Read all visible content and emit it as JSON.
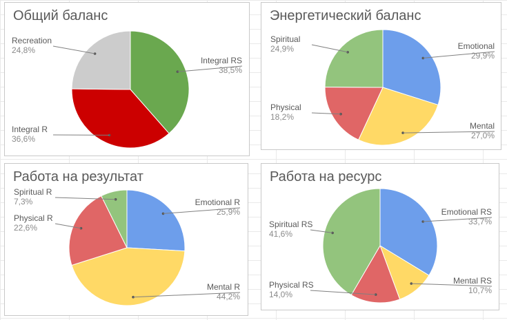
{
  "chart_data": [
    {
      "type": "pie",
      "title": "Общий баланс",
      "series": [
        {
          "values": [
            38.5,
            36.6,
            24.8
          ]
        }
      ],
      "categories": [
        "Integral RS",
        "Integral R",
        "Recreation"
      ],
      "value_labels": [
        "38,5%",
        "36,6%",
        "24,8%"
      ],
      "colors": [
        "#6aa84f",
        "#cc0000",
        "#cccccc"
      ],
      "legend": "none"
    },
    {
      "type": "pie",
      "title": "Энергетический баланс",
      "series": [
        {
          "values": [
            29.9,
            27.0,
            18.2,
            24.9
          ]
        }
      ],
      "categories": [
        "Emotional",
        "Mental",
        "Physical",
        "Spiritual"
      ],
      "value_labels": [
        "29,9%",
        "27,0%",
        "18,2%",
        "24,9%"
      ],
      "colors": [
        "#6d9eeb",
        "#ffd966",
        "#e06666",
        "#93c47d"
      ],
      "legend": "none"
    },
    {
      "type": "pie",
      "title": "Работа на результат",
      "series": [
        {
          "values": [
            25.9,
            44.2,
            22.6,
            7.3
          ]
        }
      ],
      "categories": [
        "Emotional R",
        "Mental R",
        "Physical R",
        "Spiritual R"
      ],
      "value_labels": [
        "25,9%",
        "44,2%",
        "22,6%",
        "7,3%"
      ],
      "colors": [
        "#6d9eeb",
        "#ffd966",
        "#e06666",
        "#93c47d"
      ],
      "legend": "none"
    },
    {
      "type": "pie",
      "title": "Работа на ресурс",
      "series": [
        {
          "values": [
            33.7,
            10.7,
            14.0,
            41.6
          ]
        }
      ],
      "categories": [
        "Emotional RS",
        "Mental RS",
        "Physical RS",
        "Spiritual RS"
      ],
      "value_labels": [
        "33,7%",
        "10,7%",
        "14,0%",
        "41,6%"
      ],
      "colors": [
        "#6d9eeb",
        "#ffd966",
        "#e06666",
        "#93c47d"
      ],
      "legend": "none"
    }
  ]
}
